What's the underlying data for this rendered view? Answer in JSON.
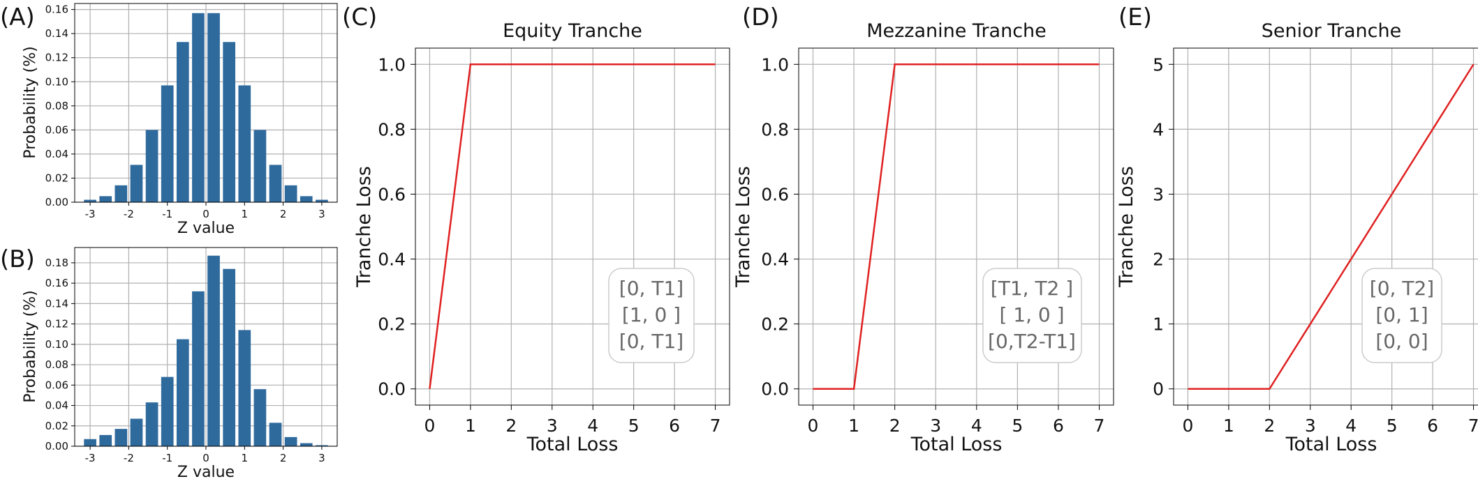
{
  "colors": {
    "bar": "#2f6a9d",
    "line": "#e02020",
    "grid": "#b0b0b0",
    "annot": "#666666",
    "axis": "#000000"
  },
  "chart_data": [
    {
      "panel": "(A)",
      "type": "bar",
      "title": "",
      "xlabel": "Z value",
      "ylabel": "Probability (%)",
      "xlim": [
        -3.4,
        3.4
      ],
      "ylim": [
        0,
        0.165
      ],
      "xticks": [
        -3,
        -2,
        -1,
        0,
        1,
        2,
        3
      ],
      "yticks": [
        0.0,
        0.02,
        0.04,
        0.06,
        0.08,
        0.1,
        0.12,
        0.14,
        0.16
      ],
      "ytick_labels": [
        "0.00",
        "0.02",
        "0.04",
        "0.06",
        "0.08",
        "0.10",
        "0.12",
        "0.14",
        "0.16"
      ],
      "x": [
        -3.0,
        -2.6,
        -2.2,
        -1.8,
        -1.4,
        -1.0,
        -0.6,
        -0.2,
        0.2,
        0.6,
        1.0,
        1.4,
        1.8,
        2.2,
        2.6,
        3.0
      ],
      "values": [
        0.002,
        0.005,
        0.014,
        0.031,
        0.06,
        0.097,
        0.133,
        0.157,
        0.157,
        0.133,
        0.097,
        0.06,
        0.031,
        0.014,
        0.005,
        0.002
      ]
    },
    {
      "panel": "(B)",
      "type": "bar",
      "title": "",
      "xlabel": "Z value",
      "ylabel": "Probability (%)",
      "xlim": [
        -3.4,
        3.4
      ],
      "ylim": [
        0,
        0.195
      ],
      "xticks": [
        -3,
        -2,
        -1,
        0,
        1,
        2,
        3
      ],
      "yticks": [
        0.0,
        0.02,
        0.04,
        0.06,
        0.08,
        0.1,
        0.12,
        0.14,
        0.16,
        0.18
      ],
      "ytick_labels": [
        "0.00",
        "0.02",
        "0.04",
        "0.06",
        "0.08",
        "0.10",
        "0.12",
        "0.14",
        "0.16",
        "0.18"
      ],
      "x": [
        -3.0,
        -2.6,
        -2.2,
        -1.8,
        -1.4,
        -1.0,
        -0.6,
        -0.2,
        0.2,
        0.6,
        1.0,
        1.4,
        1.8,
        2.2,
        2.6,
        3.0
      ],
      "values": [
        0.007,
        0.011,
        0.017,
        0.027,
        0.043,
        0.068,
        0.105,
        0.152,
        0.187,
        0.174,
        0.114,
        0.056,
        0.023,
        0.009,
        0.003,
        0.001
      ]
    },
    {
      "panel": "(C)",
      "type": "line",
      "title": "Equity Tranche",
      "xlabel": "Total Loss",
      "ylabel": "Tranche Loss",
      "xlim": [
        -0.35,
        7.35
      ],
      "ylim": [
        -0.05,
        1.05
      ],
      "xticks": [
        0,
        1,
        2,
        3,
        4,
        5,
        6,
        7
      ],
      "yticks": [
        0.0,
        0.2,
        0.4,
        0.6,
        0.8,
        1.0
      ],
      "ytick_labels": [
        "0.0",
        "0.2",
        "0.4",
        "0.6",
        "0.8",
        "1.0"
      ],
      "series": [
        {
          "x": [
            0,
            1,
            7
          ],
          "y": [
            0,
            1,
            1
          ]
        }
      ],
      "annotation": [
        "[0, T1]",
        "[1, 0 ]",
        "[0, T1]"
      ]
    },
    {
      "panel": "(D)",
      "type": "line",
      "title": "Mezzanine Tranche",
      "xlabel": "Total Loss",
      "ylabel": "Tranche Loss",
      "xlim": [
        -0.35,
        7.35
      ],
      "ylim": [
        -0.05,
        1.05
      ],
      "xticks": [
        0,
        1,
        2,
        3,
        4,
        5,
        6,
        7
      ],
      "yticks": [
        0.0,
        0.2,
        0.4,
        0.6,
        0.8,
        1.0
      ],
      "ytick_labels": [
        "0.0",
        "0.2",
        "0.4",
        "0.6",
        "0.8",
        "1.0"
      ],
      "series": [
        {
          "x": [
            0,
            1,
            2,
            7
          ],
          "y": [
            0,
            0,
            1,
            1
          ]
        }
      ],
      "annotation": [
        "[T1, T2 ]",
        "[ 1, 0 ]",
        "[0,T2-T1]"
      ]
    },
    {
      "panel": "(E)",
      "type": "line",
      "title": "Senior Tranche",
      "xlabel": "Total Loss",
      "ylabel": "Tranche Loss",
      "xlim": [
        -0.35,
        7.35
      ],
      "ylim": [
        -0.25,
        5.25
      ],
      "xticks": [
        0,
        1,
        2,
        3,
        4,
        5,
        6,
        7
      ],
      "yticks": [
        0,
        1,
        2,
        3,
        4,
        5
      ],
      "ytick_labels": [
        "0",
        "1",
        "2",
        "3",
        "4",
        "5"
      ],
      "series": [
        {
          "x": [
            0,
            2,
            7
          ],
          "y": [
            0,
            0,
            5
          ]
        }
      ],
      "annotation": [
        "[0, T2]",
        "[0, 1]",
        "[0, 0]"
      ]
    }
  ]
}
